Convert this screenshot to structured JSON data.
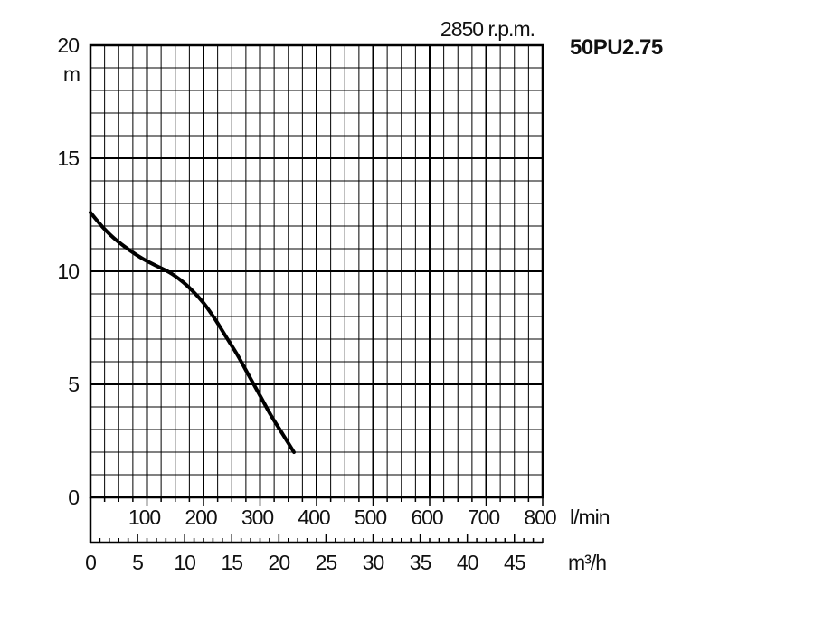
{
  "chart_data": {
    "type": "line",
    "title": "50PU2.75",
    "subtitle": "2850 r.p.m.",
    "ylabel": "m",
    "xlabel_lmin": "l/min",
    "xlabel_m3h": "m³/h",
    "ylim": [
      0,
      20
    ],
    "xlim_lmin": [
      0,
      800
    ],
    "xlim_m3h": [
      0,
      48
    ],
    "y_ticks": [
      "0",
      "5",
      "10",
      "15",
      "20"
    ],
    "x_ticks_lmin": [
      "100",
      "200",
      "300",
      "400",
      "500",
      "600",
      "700",
      "800"
    ],
    "x_ticks_m3h": [
      "0",
      "5",
      "10",
      "15",
      "20",
      "25",
      "30",
      "35",
      "40",
      "45"
    ],
    "grid": true,
    "series": [
      {
        "x": [
          0,
          20,
          40,
          60,
          80,
          100,
          120,
          140,
          160,
          180,
          200,
          220,
          240,
          260,
          280,
          300,
          320,
          340,
          360
        ],
        "y": [
          12.6,
          12.0,
          11.5,
          11.1,
          10.75,
          10.45,
          10.2,
          9.95,
          9.6,
          9.15,
          8.6,
          7.9,
          7.1,
          6.3,
          5.4,
          4.5,
          3.6,
          2.8,
          2.0
        ]
      }
    ]
  }
}
